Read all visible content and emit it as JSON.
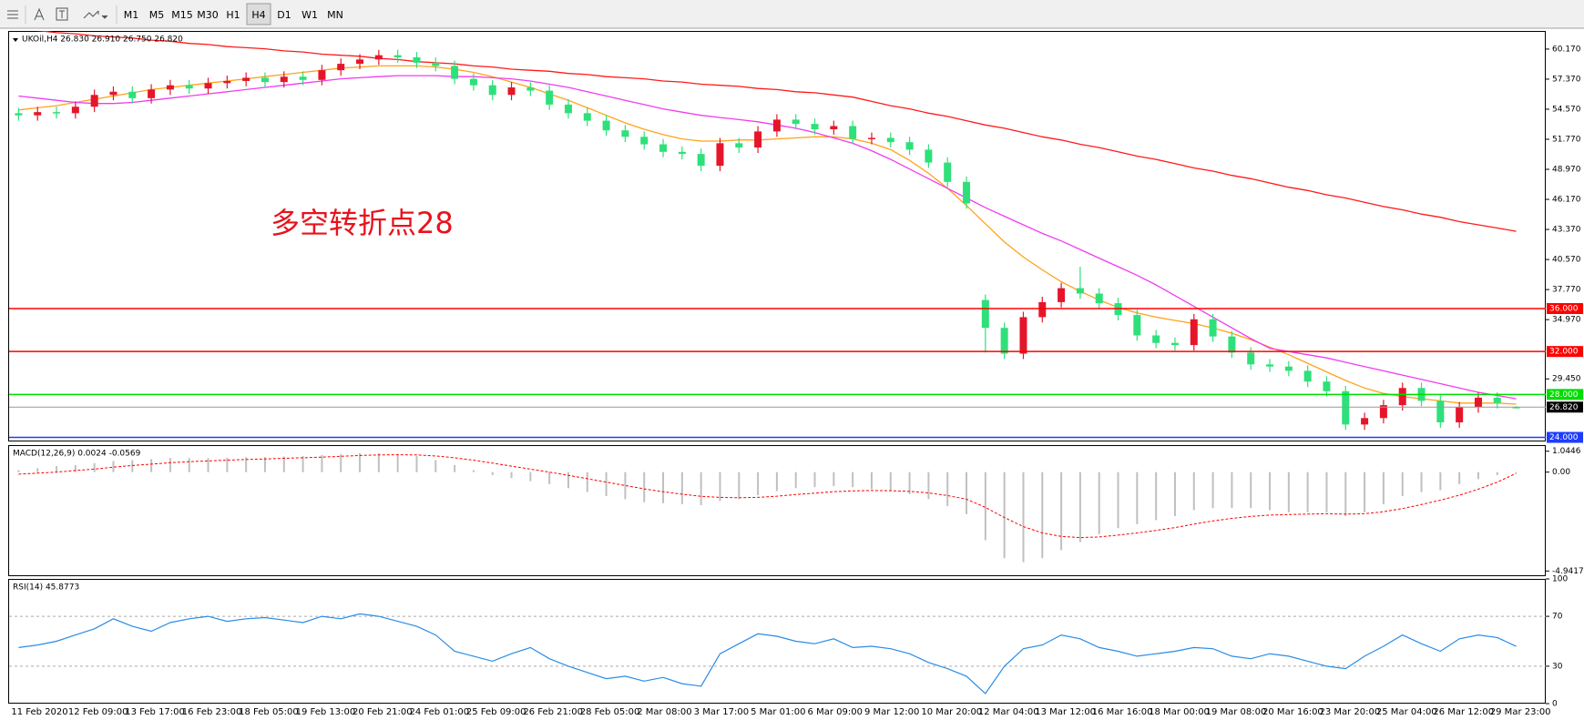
{
  "toolbar": {
    "timeframes": [
      "M1",
      "M5",
      "M15",
      "M30",
      "H1",
      "H4",
      "D1",
      "W1",
      "MN"
    ]
  },
  "chart_data": [
    {
      "type": "candlestick",
      "title": "UKOil,H4  26.830 26.910 26.750 26.820",
      "annotation": "多空转折点28",
      "categories": [
        "11 Feb 2020",
        null,
        null,
        "12 Feb 09:00",
        null,
        null,
        "13 Feb 17:00",
        null,
        null,
        "16 Feb 23:00",
        null,
        null,
        "18 Feb 05:00",
        null,
        null,
        "19 Feb 13:00",
        null,
        null,
        "20 Feb 21:00",
        null,
        null,
        "24 Feb 01:00",
        null,
        null,
        "25 Feb 09:00",
        null,
        null,
        "26 Feb 21:00",
        null,
        null,
        "28 Feb 05:00",
        null,
        null,
        "2 Mar 08:00",
        null,
        null,
        "3 Mar 17:00",
        null,
        null,
        "5 Mar 01:00",
        null,
        null,
        "6 Mar 09:00",
        null,
        null,
        "9 Mar 12:00",
        null,
        null,
        "10 Mar 20:00",
        null,
        null,
        "12 Mar 04:00",
        null,
        null,
        "13 Mar 12:00",
        null,
        null,
        "16 Mar 16:00",
        null,
        null,
        "18 Mar 00:00",
        null,
        null,
        "19 Mar 08:00",
        null,
        null,
        "20 Mar 16:00",
        null,
        null,
        "23 Mar 20:00",
        null,
        null,
        "25 Mar 04:00",
        null,
        null,
        "26 Mar 12:00",
        null,
        null,
        "29 Mar 23:00",
        null
      ],
      "open": [
        54.2,
        54.0,
        54.3,
        54.2,
        54.8,
        55.9,
        56.2,
        55.6,
        56.4,
        56.8,
        56.5,
        57.0,
        57.2,
        57.5,
        57.1,
        57.6,
        57.3,
        58.2,
        58.8,
        59.2,
        59.6,
        59.4,
        58.9,
        58.6,
        57.4,
        56.8,
        55.9,
        56.6,
        56.3,
        55.0,
        54.2,
        53.5,
        52.6,
        52.0,
        51.3,
        50.6,
        50.4,
        49.3,
        51.4,
        51.0,
        52.5,
        53.6,
        53.2,
        52.7,
        53.0,
        51.8,
        51.9,
        51.5,
        50.8,
        49.6,
        47.8,
        36.8,
        34.2,
        31.8,
        35.2,
        36.6,
        37.9,
        37.4,
        36.5,
        35.4,
        33.5,
        32.8,
        32.6,
        35.0,
        33.4,
        31.9,
        30.8,
        30.6,
        30.2,
        29.2,
        28.3,
        25.2,
        25.8,
        27.0,
        28.6,
        27.4,
        25.4,
        26.8,
        27.7,
        26.83
      ],
      "high": [
        54.7,
        54.8,
        54.8,
        55.3,
        56.4,
        56.7,
        56.7,
        56.9,
        57.3,
        57.3,
        57.5,
        57.7,
        58.0,
        58.0,
        58.1,
        58.1,
        58.7,
        59.3,
        59.7,
        60.1,
        60.1,
        59.9,
        59.4,
        59.1,
        57.9,
        57.3,
        57.1,
        57.1,
        56.8,
        55.5,
        54.7,
        54.0,
        53.1,
        52.5,
        51.8,
        51.1,
        50.9,
        51.9,
        51.9,
        53.0,
        54.1,
        54.1,
        53.7,
        53.5,
        53.5,
        52.4,
        52.4,
        52.0,
        51.3,
        50.1,
        48.3,
        37.3,
        34.7,
        35.7,
        37.1,
        38.4,
        39.9,
        37.9,
        37.0,
        35.9,
        34.0,
        33.3,
        35.5,
        35.5,
        33.9,
        32.4,
        31.3,
        31.1,
        30.7,
        29.7,
        28.8,
        26.3,
        27.5,
        29.1,
        29.1,
        27.9,
        27.3,
        28.2,
        28.2,
        26.91
      ],
      "low": [
        53.5,
        53.5,
        53.7,
        53.7,
        54.3,
        55.4,
        55.1,
        55.1,
        55.9,
        56.0,
        56.0,
        56.5,
        56.7,
        56.6,
        56.6,
        56.8,
        56.8,
        57.7,
        58.3,
        58.7,
        58.9,
        58.4,
        58.1,
        56.9,
        56.3,
        55.4,
        55.4,
        55.8,
        54.5,
        53.7,
        53.0,
        52.1,
        51.5,
        50.8,
        50.1,
        49.9,
        48.8,
        48.8,
        50.5,
        50.5,
        52.0,
        52.7,
        52.2,
        52.2,
        51.3,
        51.3,
        51.0,
        50.3,
        49.1,
        47.3,
        45.3,
        31.9,
        31.3,
        31.3,
        34.7,
        36.1,
        36.9,
        36.0,
        34.9,
        33.0,
        32.3,
        32.1,
        32.1,
        32.9,
        31.4,
        30.3,
        30.1,
        29.7,
        28.7,
        27.8,
        24.7,
        24.7,
        25.3,
        26.5,
        26.9,
        24.9,
        24.9,
        26.3,
        26.7,
        26.75
      ],
      "close": [
        54.0,
        54.3,
        54.2,
        54.8,
        55.9,
        56.2,
        55.6,
        56.4,
        56.8,
        56.5,
        57.0,
        57.2,
        57.5,
        57.1,
        57.6,
        57.3,
        58.2,
        58.8,
        59.2,
        59.6,
        59.4,
        58.9,
        58.6,
        57.4,
        56.8,
        55.9,
        56.6,
        56.3,
        55.0,
        54.2,
        53.5,
        52.6,
        52.0,
        51.3,
        50.6,
        50.4,
        49.3,
        51.4,
        51.0,
        52.5,
        53.6,
        53.2,
        52.7,
        53.0,
        51.8,
        51.9,
        51.5,
        50.8,
        49.6,
        47.8,
        45.8,
        34.2,
        31.8,
        35.2,
        36.6,
        37.9,
        37.4,
        36.5,
        35.4,
        33.5,
        32.8,
        32.6,
        35.0,
        33.4,
        31.9,
        30.8,
        30.6,
        30.2,
        29.2,
        28.3,
        25.2,
        25.8,
        27.0,
        28.6,
        27.4,
        25.4,
        26.8,
        27.7,
        27.2,
        26.82
      ],
      "up_color": "#e5162b",
      "down_color": "#2ee07a",
      "series": [
        {
          "color": "#ffa31a",
          "values": [
            54.5,
            54.7,
            54.9,
            55.2,
            55.5,
            55.8,
            56.1,
            56.4,
            56.6,
            56.8,
            57.0,
            57.2,
            57.4,
            57.6,
            57.8,
            58.0,
            58.2,
            58.4,
            58.5,
            58.6,
            58.6,
            58.6,
            58.5,
            58.3,
            58.0,
            57.6,
            57.1,
            56.6,
            56.0,
            55.4,
            54.7,
            54.0,
            53.3,
            52.7,
            52.2,
            51.8,
            51.6,
            51.6,
            51.7,
            51.7,
            51.8,
            51.9,
            52.0,
            52.0,
            51.8,
            51.4,
            50.8,
            49.8,
            48.6,
            47.2,
            45.6,
            43.9,
            42.2,
            40.8,
            39.6,
            38.5,
            37.6,
            36.8,
            36.1,
            35.6,
            35.2,
            34.9,
            34.6,
            34.2,
            33.7,
            33.1,
            32.4,
            31.7,
            30.9,
            30.1,
            29.3,
            28.6,
            28.1,
            27.8,
            27.6,
            27.4,
            27.2,
            27.2,
            27.2,
            27.1
          ]
        },
        {
          "color": "#f03cf0",
          "values": [
            55.8,
            55.6,
            55.4,
            55.2,
            55.1,
            55.1,
            55.2,
            55.4,
            55.6,
            55.8,
            56.0,
            56.2,
            56.4,
            56.6,
            56.8,
            57.0,
            57.2,
            57.4,
            57.5,
            57.6,
            57.7,
            57.7,
            57.7,
            57.6,
            57.6,
            57.5,
            57.4,
            57.2,
            56.9,
            56.6,
            56.2,
            55.8,
            55.4,
            55.0,
            54.6,
            54.3,
            54.0,
            53.8,
            53.6,
            53.4,
            53.1,
            52.8,
            52.4,
            51.9,
            51.4,
            50.7,
            49.9,
            49.0,
            48.1,
            47.2,
            46.3,
            45.4,
            44.6,
            43.8,
            43.0,
            42.3,
            41.5,
            40.7,
            39.9,
            39.1,
            38.2,
            37.2,
            36.2,
            35.2,
            34.2,
            33.2,
            32.3,
            32.0,
            31.7,
            31.4,
            31.0,
            30.6,
            30.2,
            29.8,
            29.4,
            29.0,
            28.6,
            28.2,
            27.9,
            27.6
          ]
        },
        {
          "color": "#ff1a1a",
          "values": [
            62.0,
            61.9,
            61.7,
            61.6,
            61.4,
            61.3,
            61.2,
            61.0,
            60.9,
            60.7,
            60.6,
            60.4,
            60.3,
            60.2,
            60.0,
            59.9,
            59.7,
            59.6,
            59.5,
            59.3,
            59.2,
            59.0,
            58.9,
            58.8,
            58.6,
            58.5,
            58.3,
            58.2,
            58.1,
            57.9,
            57.8,
            57.6,
            57.5,
            57.4,
            57.2,
            57.1,
            56.9,
            56.8,
            56.7,
            56.5,
            56.4,
            56.2,
            56.1,
            55.9,
            55.7,
            55.3,
            54.9,
            54.6,
            54.2,
            53.9,
            53.5,
            53.1,
            52.8,
            52.4,
            52.0,
            51.7,
            51.3,
            51.0,
            50.6,
            50.2,
            49.9,
            49.5,
            49.1,
            48.8,
            48.4,
            48.1,
            47.7,
            47.3,
            47.0,
            46.6,
            46.3,
            45.9,
            45.5,
            45.2,
            44.8,
            44.5,
            44.1,
            43.8,
            43.5,
            43.2
          ]
        }
      ],
      "levels": [
        {
          "value": 36,
          "label": "36.000",
          "color": "#ff0000"
        },
        {
          "value": 32,
          "label": "32.000",
          "color": "#ff0000"
        },
        {
          "value": 28,
          "label": "28.000",
          "color": "#00dd00"
        },
        {
          "value": 24,
          "label": "24.000",
          "color": "#1e3cff"
        }
      ],
      "last_price": {
        "value": 26.82,
        "label": "26.820"
      },
      "ylim": [
        23.62,
        61.86
      ],
      "yticks": [
        {
          "value": 60.17,
          "label": "60.170"
        },
        {
          "value": 57.37,
          "label": "57.370"
        },
        {
          "value": 54.57,
          "label": "54.570"
        },
        {
          "value": 51.77,
          "label": "51.770"
        },
        {
          "value": 48.97,
          "label": "48.970"
        },
        {
          "value": 46.17,
          "label": "46.170"
        },
        {
          "value": 43.37,
          "label": "43.370"
        },
        {
          "value": 40.57,
          "label": "40.570"
        },
        {
          "value": 37.77,
          "label": "37.770"
        },
        {
          "value": 34.97,
          "label": "34.970"
        },
        {
          "value": 29.45,
          "label": "29.450"
        }
      ]
    },
    {
      "type": "macd",
      "title": "MACD(12,26,9) 0.0024 -0.0569",
      "macd": [
        0.1,
        0.2,
        0.3,
        0.35,
        0.45,
        0.55,
        0.6,
        0.65,
        0.7,
        0.7,
        0.7,
        0.72,
        0.75,
        0.75,
        0.78,
        0.8,
        0.85,
        0.9,
        0.95,
        0.95,
        0.9,
        0.8,
        0.6,
        0.35,
        0.1,
        -0.15,
        -0.3,
        -0.45,
        -0.6,
        -0.8,
        -1.0,
        -1.2,
        -1.35,
        -1.5,
        -1.55,
        -1.6,
        -1.65,
        -1.45,
        -1.35,
        -1.15,
        -0.95,
        -0.8,
        -0.75,
        -0.7,
        -0.75,
        -0.85,
        -0.95,
        -1.1,
        -1.35,
        -1.7,
        -2.1,
        -3.4,
        -4.3,
        -4.5,
        -4.3,
        -3.9,
        -3.5,
        -3.1,
        -2.8,
        -2.6,
        -2.4,
        -2.2,
        -1.9,
        -1.8,
        -1.8,
        -1.8,
        -1.9,
        -2.0,
        -2.0,
        -2.0,
        -2.2,
        -2.0,
        -1.6,
        -1.2,
        -1.0,
        -0.9,
        -0.6,
        -0.35,
        -0.15,
        0.0024
      ],
      "signal": [
        -0.1,
        -0.05,
        0.0,
        0.08,
        0.15,
        0.25,
        0.33,
        0.4,
        0.47,
        0.52,
        0.56,
        0.6,
        0.63,
        0.66,
        0.69,
        0.72,
        0.75,
        0.79,
        0.83,
        0.86,
        0.87,
        0.86,
        0.81,
        0.72,
        0.6,
        0.45,
        0.3,
        0.15,
        0.0,
        -0.16,
        -0.33,
        -0.5,
        -0.67,
        -0.84,
        -0.98,
        -1.1,
        -1.21,
        -1.26,
        -1.28,
        -1.26,
        -1.2,
        -1.12,
        -1.05,
        -0.98,
        -0.94,
        -0.92,
        -0.93,
        -0.96,
        -1.04,
        -1.17,
        -1.35,
        -1.76,
        -2.27,
        -2.72,
        -3.04,
        -3.21,
        -3.27,
        -3.24,
        -3.15,
        -3.04,
        -2.91,
        -2.77,
        -2.6,
        -2.44,
        -2.31,
        -2.21,
        -2.15,
        -2.12,
        -2.1,
        -2.08,
        -2.1,
        -2.08,
        -1.98,
        -1.82,
        -1.62,
        -1.4,
        -1.15,
        -0.85,
        -0.5,
        -0.0569
      ],
      "macd_color": "#c0c0c0",
      "signal_color": "#ff0000",
      "ylim": [
        -5.2,
        1.35
      ],
      "yticks": [
        1.0446,
        {
          "value": 0,
          "label": "0.00"
        },
        -4.9417
      ]
    },
    {
      "type": "rsi",
      "title": "RSI(14) 45.8773",
      "values": [
        45,
        47,
        50,
        55,
        60,
        68,
        62,
        58,
        65,
        68,
        70,
        66,
        68,
        69,
        67,
        65,
        70,
        68,
        72,
        70,
        66,
        62,
        55,
        42,
        38,
        34,
        40,
        45,
        36,
        30,
        25,
        20,
        22,
        18,
        21,
        16,
        14,
        40,
        48,
        56,
        54,
        50,
        48,
        52,
        45,
        46,
        44,
        40,
        33,
        28,
        22,
        8,
        30,
        44,
        47,
        55,
        52,
        45,
        42,
        38,
        40,
        42,
        45,
        44,
        38,
        36,
        40,
        38,
        34,
        30,
        28,
        38,
        46,
        55,
        48,
        42,
        52,
        55,
        53,
        45.8773
      ],
      "color": "#2a8ce6",
      "levels": [
        70,
        30
      ],
      "ylim": [
        0,
        100
      ],
      "yticks": [
        100,
        70,
        30,
        0
      ]
    }
  ]
}
